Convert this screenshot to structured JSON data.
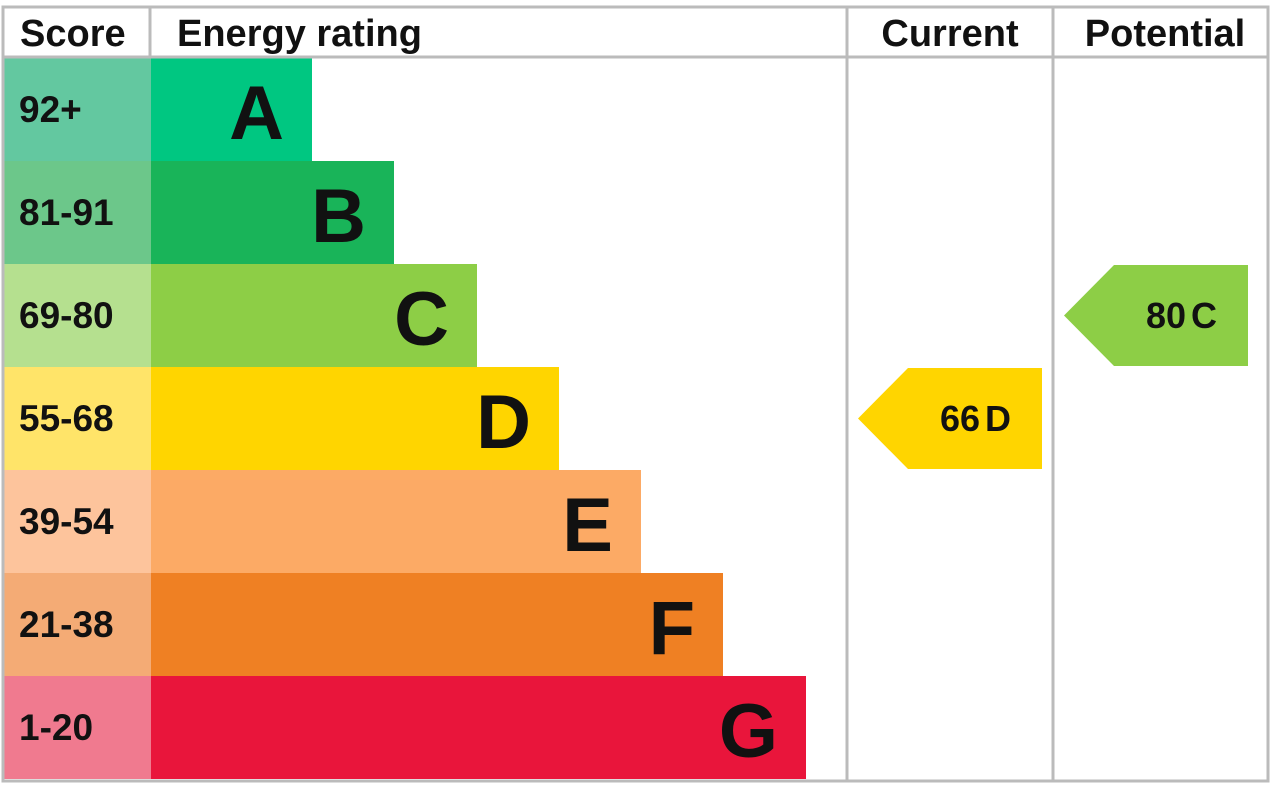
{
  "header": {
    "score": "Score",
    "rating": "Energy rating",
    "current": "Current",
    "potential": "Potential"
  },
  "bands": [
    {
      "score": "92+",
      "letter": "A",
      "color": "#00c781",
      "score_color": "#63c8a0"
    },
    {
      "score": "81-91",
      "letter": "B",
      "color": "#19b459",
      "score_color": "#6cc78a"
    },
    {
      "score": "69-80",
      "letter": "C",
      "color": "#8dce46",
      "score_color": "#b5e08f"
    },
    {
      "score": "55-68",
      "letter": "D",
      "color": "#ffd500",
      "score_color": "#ffe469"
    },
    {
      "score": "39-54",
      "letter": "E",
      "color": "#fcaa65",
      "score_color": "#fdc49c"
    },
    {
      "score": "21-38",
      "letter": "F",
      "color": "#ef8023",
      "score_color": "#f4ab75"
    },
    {
      "score": "1-20",
      "letter": "G",
      "color": "#e9153b",
      "score_color": "#f07a8f"
    }
  ],
  "current": {
    "value": 66,
    "letter": "D"
  },
  "potential": {
    "value": 80,
    "letter": "C"
  }
}
